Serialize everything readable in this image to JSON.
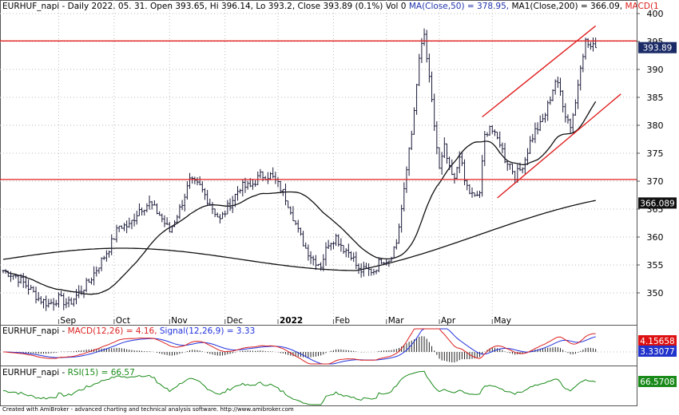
{
  "header": {
    "symbol": "EURHUF_napi",
    "text": "EURHUF_napi - Daily 2022. 05. 31. Open 393.65, Hi 396.14, Lo 393.2, Close 393.89 (0.1%) Vol 0",
    "ma50": "MA(Close,50) = 378.95,",
    "ma200": "MA1(Close,200) = 366.09,",
    "macd_cut": "MACD(1"
  },
  "macd_header": {
    "prefix": "EURHUF_napi - ",
    "macd": "MACD(12,26) = 4.16,",
    "signal": "Signal(12,26,9) = 3.33"
  },
  "rsi_header": {
    "prefix": "EURHUF_napi - ",
    "rsi": "RSI(15) = 66.57"
  },
  "credit": "Created with AmiBroker - advanced charting and technical analysis software. http://www.amibroker.com",
  "colors": {
    "ma50": "#2233aa",
    "macd_line": "#dd2222",
    "signal_line": "#2233dd",
    "rsi_line": "#1a8a1a",
    "trend": "#e02020",
    "price_badge": "#1a2a66",
    "ma200_badge": "#111111",
    "macd_badge": "#dd1111",
    "signal_badge": "#2233cc",
    "rsi_badge": "#1a8a1a"
  },
  "chart_data": [
    {
      "type": "candlestick",
      "title": "EURHUF_napi - Daily",
      "x_labels": [
        "Sep",
        "Oct",
        "Nov",
        "Dec",
        "2022",
        "Feb",
        "Mar",
        "Apr",
        "May"
      ],
      "y_ticks": [
        350,
        355,
        360,
        365,
        370,
        375,
        380,
        385,
        390,
        395,
        400
      ],
      "ylim": [
        346,
        402
      ],
      "price_path": [
        [
          0,
          354
        ],
        [
          5,
          353
        ],
        [
          10,
          351
        ],
        [
          14,
          349
        ],
        [
          18,
          348
        ],
        [
          22,
          349
        ],
        [
          26,
          348
        ],
        [
          30,
          350
        ],
        [
          34,
          352
        ],
        [
          38,
          355
        ],
        [
          42,
          358
        ],
        [
          46,
          362
        ],
        [
          50,
          362
        ],
        [
          54,
          365
        ],
        [
          58,
          366
        ],
        [
          62,
          364
        ],
        [
          66,
          361
        ],
        [
          70,
          365
        ],
        [
          74,
          370
        ],
        [
          78,
          369
        ],
        [
          82,
          366
        ],
        [
          86,
          363
        ],
        [
          90,
          366
        ],
        [
          94,
          369
        ],
        [
          98,
          369
        ],
        [
          102,
          371
        ],
        [
          106,
          371
        ],
        [
          108,
          370
        ],
        [
          111,
          368
        ],
        [
          114,
          365
        ],
        [
          117,
          361
        ],
        [
          120,
          358
        ],
        [
          123,
          356
        ],
        [
          126,
          355
        ],
        [
          129,
          359
        ],
        [
          132,
          360
        ],
        [
          135,
          358
        ],
        [
          138,
          357
        ],
        [
          141,
          354
        ],
        [
          144,
          354
        ],
        [
          147,
          354
        ],
        [
          150,
          356
        ],
        [
          153,
          356
        ],
        [
          156,
          359
        ],
        [
          159,
          368
        ],
        [
          161,
          376
        ],
        [
          163,
          382
        ],
        [
          165,
          392
        ],
        [
          167,
          396
        ],
        [
          169,
          388
        ],
        [
          171,
          380
        ],
        [
          173,
          372
        ],
        [
          175,
          376
        ],
        [
          177,
          372
        ],
        [
          179,
          370
        ],
        [
          181,
          375
        ],
        [
          183,
          370
        ],
        [
          185,
          368
        ],
        [
          187,
          367
        ],
        [
          189,
          368
        ],
        [
          191,
          378
        ],
        [
          193,
          380
        ],
        [
          195,
          378
        ],
        [
          197,
          377
        ],
        [
          199,
          374
        ],
        [
          201,
          373
        ],
        [
          203,
          371
        ],
        [
          205,
          372
        ],
        [
          207,
          374
        ],
        [
          209,
          377
        ],
        [
          211,
          379
        ],
        [
          213,
          380
        ],
        [
          215,
          382
        ],
        [
          217,
          385
        ],
        [
          219,
          388
        ],
        [
          221,
          386
        ],
        [
          223,
          382
        ],
        [
          225,
          380
        ],
        [
          227,
          384
        ],
        [
          229,
          391
        ],
        [
          231,
          395
        ],
        [
          233,
          394
        ],
        [
          235,
          393.9
        ]
      ],
      "last_close": "393.89",
      "ma50_value": 378.95,
      "ma200_value": "366.089",
      "horizontal_lines": [
        395.1,
        370.3
      ],
      "channel": {
        "upper": [
          [
            190,
            381.5
          ],
          [
            235,
            397.8
          ]
        ],
        "lower": [
          [
            196,
            367
          ],
          [
            245,
            385.6
          ]
        ]
      }
    },
    {
      "type": "line",
      "name": "MACD(12,26)",
      "series": [
        {
          "name": "MACD(12,26)",
          "last": "4.15658"
        },
        {
          "name": "Signal(12,26,9)",
          "last": "3.33077"
        }
      ]
    },
    {
      "type": "line",
      "name": "RSI(15)",
      "series": [
        {
          "name": "RSI(15)",
          "last": "66.5708"
        }
      ]
    }
  ]
}
